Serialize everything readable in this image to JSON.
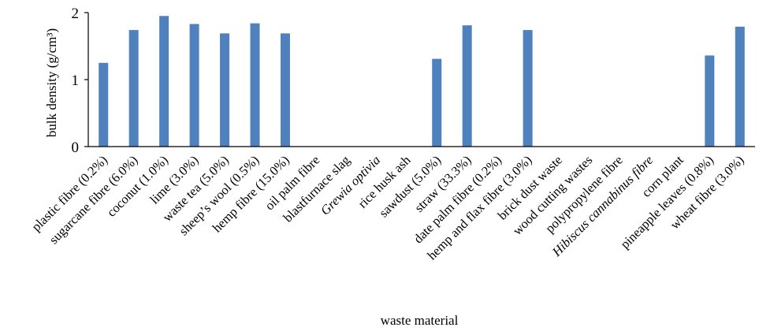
{
  "chart_data": {
    "type": "bar",
    "xlabel": "waste material",
    "ylabel": "bulk density (g/cm³)",
    "ylim": [
      0,
      2
    ],
    "yticks": [
      "0",
      "1",
      "2"
    ],
    "grid": false,
    "legend": "none",
    "bar_color": "#4f81bd",
    "categories": [
      "plastic fibre  (0.2%)",
      "sugarcane fibre (6.0%)",
      "coconut (1.0%)",
      "lime (3.0%)",
      "waste tea (5.0%)",
      "sheep’s wool (0.5%)",
      "hemp fibre (15.0%)",
      "oil palm fibre",
      "blastfurnace slag",
      "Grewia optivia",
      "rice husk ash",
      "sawdust (5.0%)",
      "straw (33.3%)",
      "date palm fibre (0.2%)",
      "hemp and flax fibre (3.0%)",
      "brick dust waste",
      "wood cutting wastes",
      "polypropylene fibre",
      "Hibiscus cannabinus fibre",
      "corn plant",
      "pineapple leaves (0.8%)",
      "wheat  fibre (3.0%)"
    ],
    "italic_categories": [
      "Grewia optivia",
      "Hibiscus cannabinus fibre"
    ],
    "values": [
      1.25,
      1.74,
      1.95,
      1.83,
      1.69,
      1.84,
      1.69,
      null,
      null,
      null,
      null,
      1.31,
      1.81,
      null,
      1.74,
      null,
      null,
      null,
      null,
      null,
      1.36,
      1.79
    ]
  }
}
